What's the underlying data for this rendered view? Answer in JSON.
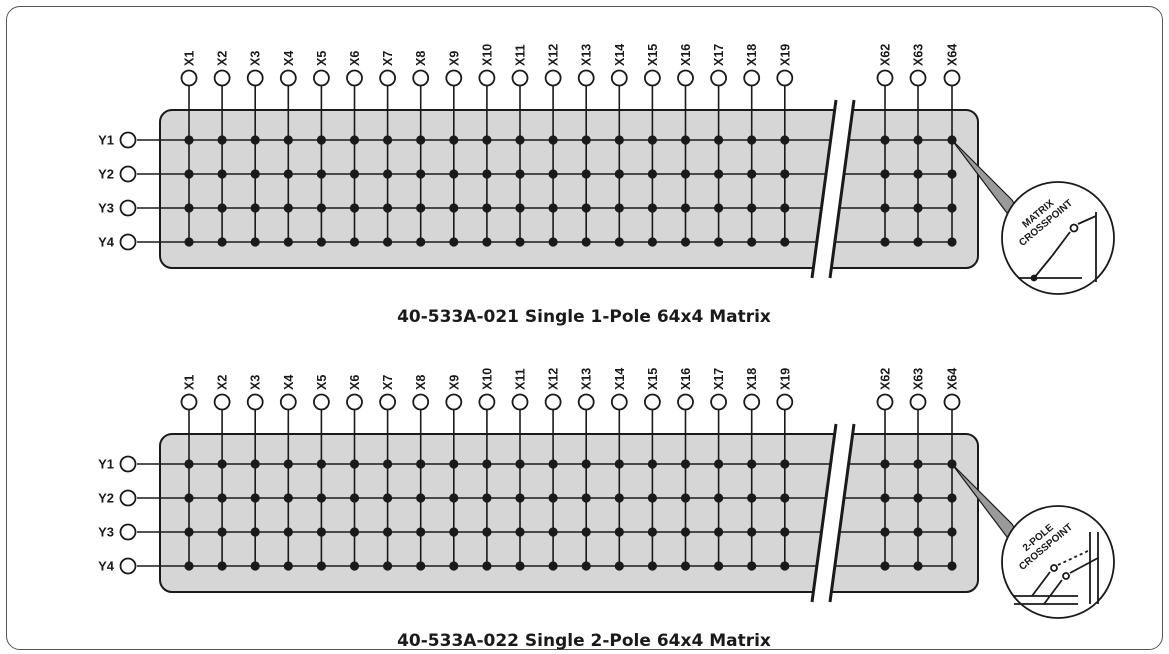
{
  "panels": [
    {
      "title": "40-533A-021 Single 1-Pole 64x4 Matrix",
      "poles": 1,
      "columns_left": [
        "X1",
        "X2",
        "X3",
        "X4",
        "X5",
        "X6",
        "X7",
        "X8",
        "X9",
        "X10",
        "X11",
        "X12",
        "X13",
        "X14",
        "X15",
        "X16",
        "X17",
        "X18",
        "X19"
      ],
      "columns_right": [
        "X62",
        "X63",
        "X64"
      ],
      "rows": [
        "Y1",
        "Y2",
        "Y3",
        "Y4"
      ],
      "callout": [
        "MATRIX",
        "CROSSPOINT"
      ]
    },
    {
      "title": "40-533A-022 Single 2-Pole 64x4 Matrix",
      "poles": 2,
      "columns_left": [
        "X1",
        "X2",
        "X3",
        "X4",
        "X5",
        "X6",
        "X7",
        "X8",
        "X9",
        "X10",
        "X11",
        "X12",
        "X13",
        "X14",
        "X15",
        "X16",
        "X17",
        "X18",
        "X19"
      ],
      "columns_right": [
        "X62",
        "X63",
        "X64"
      ],
      "rows": [
        "Y1",
        "Y2",
        "Y3",
        "Y4"
      ],
      "callout": [
        "2-POLE",
        "CROSSPOINT"
      ]
    }
  ],
  "colors": {
    "board": "#d6d6d6",
    "line": "#1a1a1a",
    "callout": "#9a9a9a"
  }
}
